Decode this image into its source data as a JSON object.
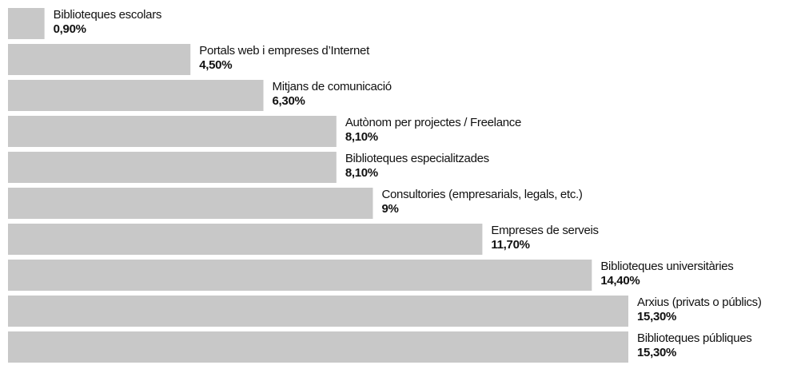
{
  "chart_data": {
    "type": "bar",
    "orientation": "horizontal",
    "color": "#c8c8c8",
    "categories": [
      "Biblioteques escolars",
      "Portals web i empreses d’Internet",
      "Mitjans de comunicació",
      "Autònom per projectes / Freelance",
      "Biblioteques especialitzades",
      "Consultories (empresarials, legals, etc.)",
      "Empreses de serveis",
      "Biblioteques universitàries",
      "Arxius (privats o públics)",
      "Biblioteques públiques"
    ],
    "values": [
      0.9,
      4.5,
      6.3,
      8.1,
      8.1,
      9,
      11.7,
      14.4,
      15.3,
      15.3
    ],
    "value_labels": [
      "0,90%",
      "4,50%",
      "6,30%",
      "8,10%",
      "8,10%",
      "9%",
      "11,70%",
      "14,40%",
      "15,30%",
      "15,30%"
    ]
  }
}
